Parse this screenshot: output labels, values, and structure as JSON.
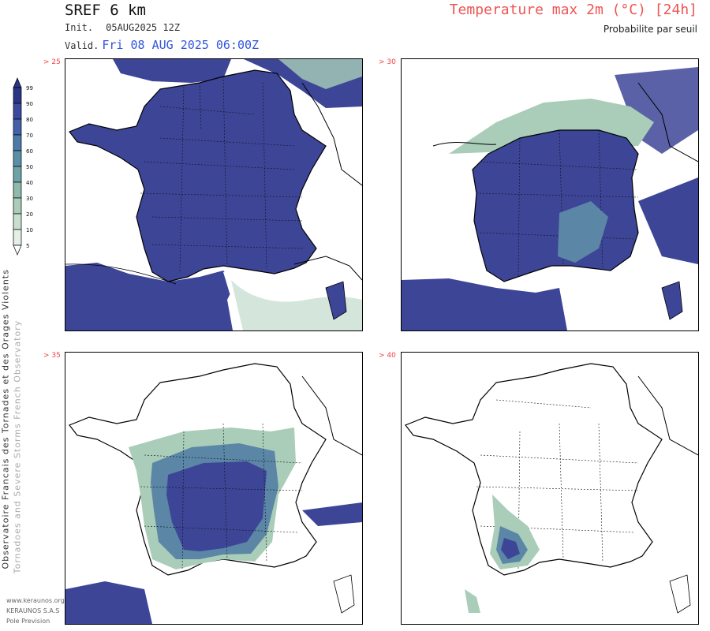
{
  "header": {
    "model": "SREF 6 km",
    "init_label": "Init.",
    "init_value": "05AUG2025 12Z",
    "valid_label": "Valid.",
    "valid_value": "Fri 08 AUG 2025 06:00Z",
    "parameter": "Temperature max 2m (°C) [24h]",
    "subtitle": "Probabilite par seuil"
  },
  "colorbar": {
    "levels": [
      "99",
      "90",
      "80",
      "70",
      "60",
      "50",
      "40",
      "30",
      "20",
      "10",
      "5"
    ],
    "colors": [
      "#2b3585",
      "#3a4a9e",
      "#4360a8",
      "#4c7aa9",
      "#5a8fa8",
      "#6ea3a6",
      "#8dbaaa",
      "#a9cdb9",
      "#c7dfcd",
      "#e4efe6"
    ]
  },
  "panels": [
    {
      "threshold": "> 25"
    },
    {
      "threshold": "> 30"
    },
    {
      "threshold": "> 35"
    },
    {
      "threshold": "> 40"
    }
  ],
  "side": {
    "line1": "Observatoire Francais des Tornades et des Orages Violents",
    "line2": "Tornadoes and Severe Storms French Observatory"
  },
  "footer": {
    "site": "www.keraunos.org",
    "company": "KERAUNOS S.A.S",
    "unit": "Pole Prevision"
  },
  "colors": {
    "fill_high": "#3d4597",
    "fill_mid": "#5b86a6",
    "fill_low": "#a9cdb9",
    "param_color": "#ee5555",
    "valid_color": "#3355dd"
  }
}
